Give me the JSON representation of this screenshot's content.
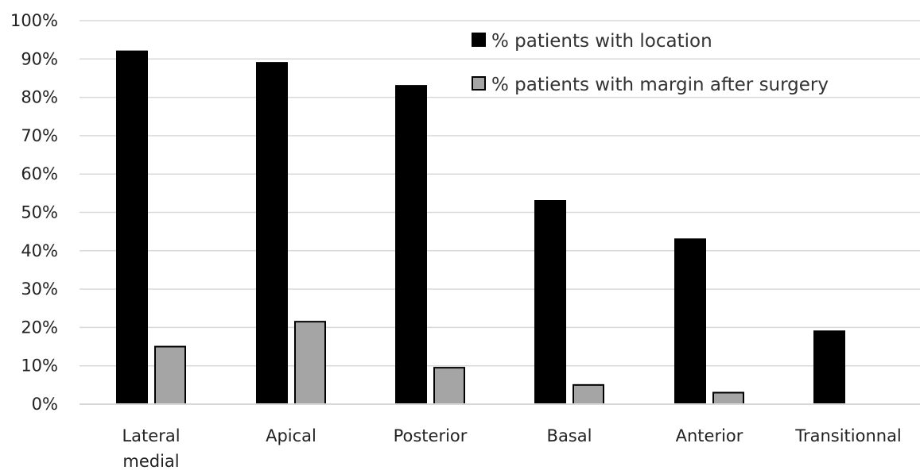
{
  "chart_data": {
    "type": "bar",
    "title": "",
    "xlabel": "",
    "ylabel": "",
    "ylim": [
      0,
      100
    ],
    "y_ticks": [
      "0%",
      "10%",
      "20%",
      "30%",
      "40%",
      "50%",
      "60%",
      "70%",
      "80%",
      "90%",
      "100%"
    ],
    "y_tick_values": [
      0,
      10,
      20,
      30,
      40,
      50,
      60,
      70,
      80,
      90,
      100
    ],
    "categories": [
      [
        "Lateral",
        "medial"
      ],
      [
        "Apical"
      ],
      [
        "Posterior"
      ],
      [
        "Basal"
      ],
      [
        "Anterior"
      ],
      [
        "Transitionnal"
      ]
    ],
    "series": [
      {
        "name": "% patients with location",
        "color": "#000000",
        "border": "#000000",
        "values": [
          92,
          89,
          83,
          53,
          43,
          19
        ]
      },
      {
        "name": "% patients with margin after surgery",
        "color": "#a5a5a5",
        "border": "#000000",
        "values": [
          15,
          21.5,
          9.5,
          5,
          3,
          0
        ]
      }
    ],
    "grid": true,
    "grid_color": "#d9d9d9",
    "legend_position": "top-right"
  }
}
